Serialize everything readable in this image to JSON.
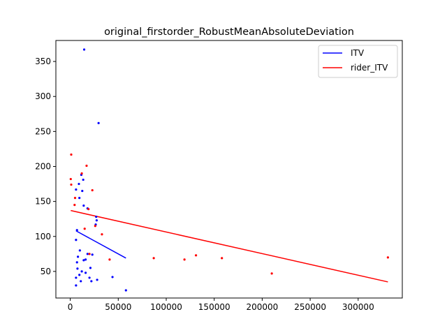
{
  "chart_data": {
    "type": "scatter",
    "title": "original_firstorder_RobustMeanAbsoluteDeviation",
    "xlabel": "",
    "ylabel": "",
    "xlim": [
      -15000,
      346000
    ],
    "ylim": [
      12,
      380
    ],
    "x_ticks": [
      0,
      50000,
      100000,
      150000,
      200000,
      250000,
      300000
    ],
    "y_ticks": [
      50,
      100,
      150,
      200,
      250,
      300,
      350
    ],
    "grid": false,
    "legend": "top-right",
    "series": [
      {
        "name": "ITV",
        "color": "#0000ff",
        "points": [
          [
            14500,
            367
          ],
          [
            29500,
            262
          ],
          [
            11500,
            188
          ],
          [
            13500,
            181
          ],
          [
            9000,
            175
          ],
          [
            12500,
            165
          ],
          [
            6000,
            167
          ],
          [
            9500,
            155
          ],
          [
            14000,
            144
          ],
          [
            18000,
            140
          ],
          [
            27000,
            128
          ],
          [
            27500,
            123
          ],
          [
            26500,
            117
          ],
          [
            7000,
            109
          ],
          [
            6000,
            95
          ],
          [
            10000,
            80
          ],
          [
            16000,
            67
          ],
          [
            18000,
            75
          ],
          [
            14000,
            66
          ],
          [
            23000,
            74
          ],
          [
            8000,
            71
          ],
          [
            7000,
            63
          ],
          [
            7500,
            54
          ],
          [
            12000,
            50
          ],
          [
            16000,
            48
          ],
          [
            21000,
            55
          ],
          [
            9500,
            45
          ],
          [
            6000,
            41
          ],
          [
            20000,
            41
          ],
          [
            11000,
            36
          ],
          [
            22000,
            36
          ],
          [
            28000,
            38
          ],
          [
            44000,
            42
          ],
          [
            6000,
            30
          ],
          [
            58000,
            23
          ]
        ],
        "fit_line": [
          [
            6000,
            108
          ],
          [
            58000,
            69
          ]
        ]
      },
      {
        "name": "rider_ITV",
        "color": "#ff0000",
        "points": [
          [
            1000,
            217
          ],
          [
            500,
            182
          ],
          [
            1000,
            174
          ],
          [
            5000,
            155
          ],
          [
            4500,
            145
          ],
          [
            12000,
            190
          ],
          [
            17000,
            201
          ],
          [
            23000,
            166
          ],
          [
            19000,
            139
          ],
          [
            26000,
            115
          ],
          [
            15000,
            111
          ],
          [
            33000,
            103
          ],
          [
            20000,
            75
          ],
          [
            41000,
            67
          ],
          [
            87000,
            69
          ],
          [
            119000,
            67
          ],
          [
            131000,
            73
          ],
          [
            158000,
            69
          ],
          [
            210000,
            47
          ],
          [
            331000,
            70
          ]
        ],
        "fit_line": [
          [
            500,
            137
          ],
          [
            331000,
            35
          ]
        ]
      }
    ]
  }
}
